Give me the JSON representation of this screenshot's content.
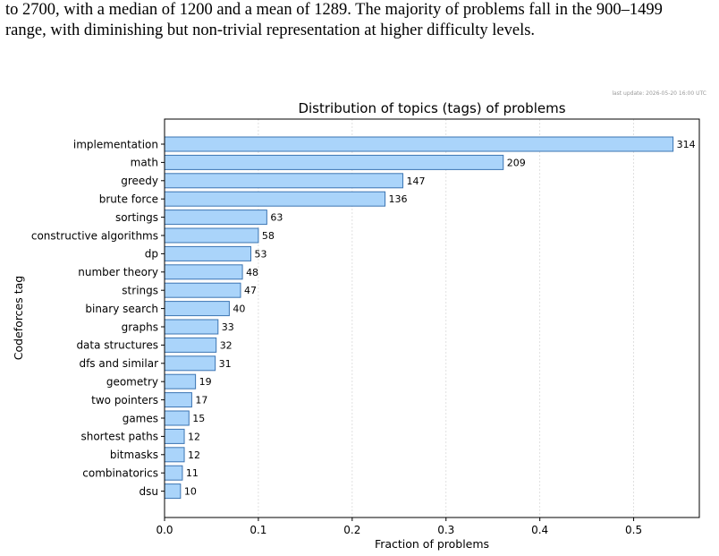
{
  "document": {
    "intro_lines": [
      "to 2700, with a median of 1200 and a mean of 1289. The majority of problems fall in the 900–1499",
      "range, with diminishing but non-trivial representation at higher difficulty levels."
    ]
  },
  "chart_data": {
    "type": "bar",
    "orientation": "horizontal",
    "title": "Distribution of topics (tags) of problems",
    "update_note": "last update: 2026-05-20 16:00 UTC",
    "xlabel": "Fraction of problems",
    "ylabel": "Codeforces tag",
    "xlim": [
      0,
      0.57
    ],
    "xticks": [
      0.0,
      0.1,
      0.2,
      0.3,
      0.4,
      0.5
    ],
    "xtick_labels": [
      "0.0",
      "0.1",
      "0.2",
      "0.3",
      "0.4",
      "0.5"
    ],
    "grid": "vertical dotted",
    "bar_color": "#aad4fa",
    "bar_edge_color": "#3b74b2",
    "categories": [
      "implementation",
      "math",
      "greedy",
      "brute force",
      "sortings",
      "constructive algorithms",
      "dp",
      "number theory",
      "strings",
      "binary search",
      "graphs",
      "data structures",
      "dfs and similar",
      "geometry",
      "two pointers",
      "games",
      "shortest paths",
      "bitmasks",
      "combinatorics",
      "dsu"
    ],
    "values": [
      0.542,
      0.361,
      0.254,
      0.235,
      0.109,
      0.1,
      0.092,
      0.083,
      0.081,
      0.069,
      0.057,
      0.055,
      0.054,
      0.033,
      0.029,
      0.026,
      0.021,
      0.021,
      0.019,
      0.017
    ],
    "data_labels": [
      "314",
      "209",
      "147",
      "136",
      "63",
      "58",
      "53",
      "48",
      "47",
      "40",
      "33",
      "32",
      "31",
      "19",
      "17",
      "15",
      "12",
      "12",
      "11",
      "10"
    ]
  }
}
